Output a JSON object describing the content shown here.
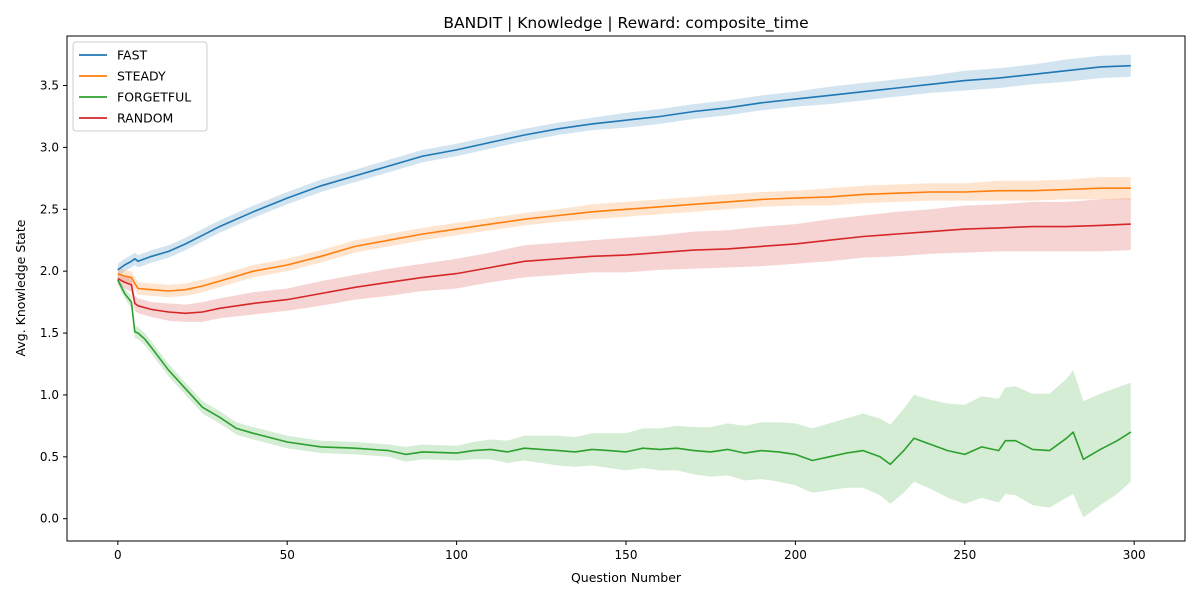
{
  "chart_data": {
    "type": "line",
    "title": "BANDIT | Knowledge | Reward: composite_time",
    "xlabel": "Question Number",
    "ylabel": "Avg. Knowledge State",
    "xlim": [
      -15,
      315
    ],
    "ylim": [
      -0.18,
      3.9
    ],
    "xticks": [
      0,
      50,
      100,
      150,
      200,
      250,
      300
    ],
    "yticks": [
      0.0,
      0.5,
      1.0,
      1.5,
      2.0,
      2.5,
      3.0,
      3.5
    ],
    "xtick_labels": [
      "0",
      "50",
      "100",
      "150",
      "200",
      "250",
      "300"
    ],
    "ytick_labels": [
      "0.0",
      "0.5",
      "1.0",
      "1.5",
      "2.0",
      "2.5",
      "3.0",
      "3.5"
    ],
    "grid": false,
    "legend_position": "top-left",
    "series": [
      {
        "name": "FAST",
        "color": "#1f77b4",
        "x": [
          0,
          2,
          4,
          5,
          6,
          10,
          15,
          20,
          25,
          30,
          40,
          50,
          60,
          70,
          80,
          90,
          100,
          110,
          120,
          130,
          140,
          150,
          160,
          170,
          180,
          190,
          200,
          210,
          220,
          230,
          240,
          250,
          260,
          270,
          280,
          290,
          299
        ],
        "y": [
          2.01,
          2.05,
          2.08,
          2.1,
          2.08,
          2.12,
          2.16,
          2.22,
          2.29,
          2.36,
          2.48,
          2.59,
          2.69,
          2.77,
          2.85,
          2.93,
          2.98,
          3.04,
          3.1,
          3.15,
          3.19,
          3.22,
          3.25,
          3.29,
          3.32,
          3.36,
          3.39,
          3.42,
          3.45,
          3.48,
          3.51,
          3.54,
          3.56,
          3.59,
          3.62,
          3.65,
          3.66
        ],
        "band": [
          0.05,
          0.05,
          0.05,
          0.05,
          0.05,
          0.05,
          0.05,
          0.05,
          0.05,
          0.05,
          0.05,
          0.05,
          0.05,
          0.05,
          0.05,
          0.05,
          0.05,
          0.05,
          0.05,
          0.05,
          0.05,
          0.06,
          0.06,
          0.06,
          0.06,
          0.06,
          0.06,
          0.07,
          0.07,
          0.07,
          0.07,
          0.08,
          0.08,
          0.08,
          0.09,
          0.09,
          0.09
        ]
      },
      {
        "name": "STEADY",
        "color": "#ff7f0e",
        "x": [
          0,
          2,
          4,
          5,
          6,
          10,
          15,
          20,
          25,
          30,
          40,
          50,
          60,
          70,
          80,
          90,
          100,
          110,
          120,
          130,
          140,
          150,
          160,
          170,
          180,
          190,
          200,
          210,
          220,
          230,
          240,
          250,
          260,
          270,
          280,
          290,
          299
        ],
        "y": [
          1.98,
          1.96,
          1.95,
          1.9,
          1.86,
          1.85,
          1.84,
          1.85,
          1.88,
          1.92,
          2.0,
          2.05,
          2.12,
          2.2,
          2.25,
          2.3,
          2.34,
          2.38,
          2.42,
          2.45,
          2.48,
          2.5,
          2.52,
          2.54,
          2.56,
          2.58,
          2.59,
          2.6,
          2.62,
          2.63,
          2.64,
          2.64,
          2.65,
          2.65,
          2.66,
          2.67,
          2.67
        ],
        "band": [
          0.05,
          0.05,
          0.05,
          0.05,
          0.05,
          0.05,
          0.05,
          0.05,
          0.05,
          0.05,
          0.05,
          0.05,
          0.05,
          0.05,
          0.05,
          0.05,
          0.05,
          0.05,
          0.05,
          0.05,
          0.06,
          0.06,
          0.06,
          0.06,
          0.06,
          0.06,
          0.06,
          0.07,
          0.07,
          0.07,
          0.07,
          0.07,
          0.08,
          0.08,
          0.08,
          0.09,
          0.09
        ]
      },
      {
        "name": "FORGETFUL",
        "color": "#2ca02c",
        "x": [
          0,
          2,
          4,
          5,
          6,
          8,
          10,
          15,
          20,
          25,
          30,
          35,
          40,
          50,
          60,
          70,
          80,
          85,
          90,
          100,
          105,
          110,
          115,
          120,
          125,
          130,
          135,
          140,
          145,
          150,
          155,
          160,
          165,
          170,
          175,
          180,
          185,
          190,
          195,
          200,
          205,
          210,
          215,
          220,
          225,
          228,
          232,
          235,
          240,
          245,
          250,
          255,
          260,
          262,
          265,
          270,
          275,
          280,
          282,
          285,
          290,
          295,
          299
        ],
        "y": [
          1.93,
          1.82,
          1.75,
          1.51,
          1.5,
          1.45,
          1.38,
          1.2,
          1.05,
          0.9,
          0.82,
          0.73,
          0.69,
          0.62,
          0.58,
          0.57,
          0.55,
          0.52,
          0.54,
          0.53,
          0.55,
          0.56,
          0.54,
          0.57,
          0.56,
          0.55,
          0.54,
          0.56,
          0.55,
          0.54,
          0.57,
          0.56,
          0.57,
          0.55,
          0.54,
          0.56,
          0.53,
          0.55,
          0.54,
          0.52,
          0.47,
          0.5,
          0.53,
          0.55,
          0.5,
          0.44,
          0.55,
          0.65,
          0.6,
          0.55,
          0.52,
          0.58,
          0.55,
          0.63,
          0.63,
          0.56,
          0.55,
          0.65,
          0.7,
          0.48,
          0.56,
          0.63,
          0.7
        ],
        "band": [
          0.03,
          0.04,
          0.05,
          0.05,
          0.05,
          0.05,
          0.05,
          0.05,
          0.05,
          0.05,
          0.05,
          0.05,
          0.05,
          0.05,
          0.05,
          0.05,
          0.05,
          0.06,
          0.06,
          0.06,
          0.07,
          0.08,
          0.09,
          0.1,
          0.11,
          0.12,
          0.12,
          0.13,
          0.14,
          0.15,
          0.16,
          0.17,
          0.18,
          0.19,
          0.2,
          0.21,
          0.22,
          0.23,
          0.24,
          0.25,
          0.26,
          0.27,
          0.28,
          0.3,
          0.31,
          0.32,
          0.34,
          0.35,
          0.36,
          0.38,
          0.4,
          0.41,
          0.42,
          0.43,
          0.44,
          0.45,
          0.46,
          0.48,
          0.5,
          0.47,
          0.45,
          0.43,
          0.4
        ]
      },
      {
        "name": "RANDOM",
        "color": "#d62728",
        "x": [
          0,
          2,
          4,
          5,
          6,
          10,
          15,
          20,
          25,
          30,
          40,
          50,
          60,
          70,
          80,
          90,
          100,
          110,
          120,
          130,
          140,
          150,
          160,
          170,
          180,
          190,
          200,
          210,
          220,
          230,
          240,
          250,
          260,
          270,
          280,
          290,
          299
        ],
        "y": [
          1.94,
          1.91,
          1.89,
          1.74,
          1.72,
          1.69,
          1.67,
          1.66,
          1.67,
          1.7,
          1.74,
          1.77,
          1.82,
          1.87,
          1.91,
          1.95,
          1.98,
          2.03,
          2.08,
          2.1,
          2.12,
          2.13,
          2.15,
          2.17,
          2.18,
          2.2,
          2.22,
          2.25,
          2.28,
          2.3,
          2.32,
          2.34,
          2.35,
          2.36,
          2.36,
          2.37,
          2.38
        ],
        "band": [
          0.05,
          0.05,
          0.06,
          0.06,
          0.06,
          0.06,
          0.07,
          0.07,
          0.08,
          0.08,
          0.09,
          0.09,
          0.1,
          0.1,
          0.11,
          0.11,
          0.12,
          0.12,
          0.13,
          0.13,
          0.13,
          0.14,
          0.14,
          0.15,
          0.15,
          0.16,
          0.16,
          0.17,
          0.17,
          0.18,
          0.18,
          0.19,
          0.19,
          0.2,
          0.2,
          0.21,
          0.21
        ]
      }
    ]
  }
}
